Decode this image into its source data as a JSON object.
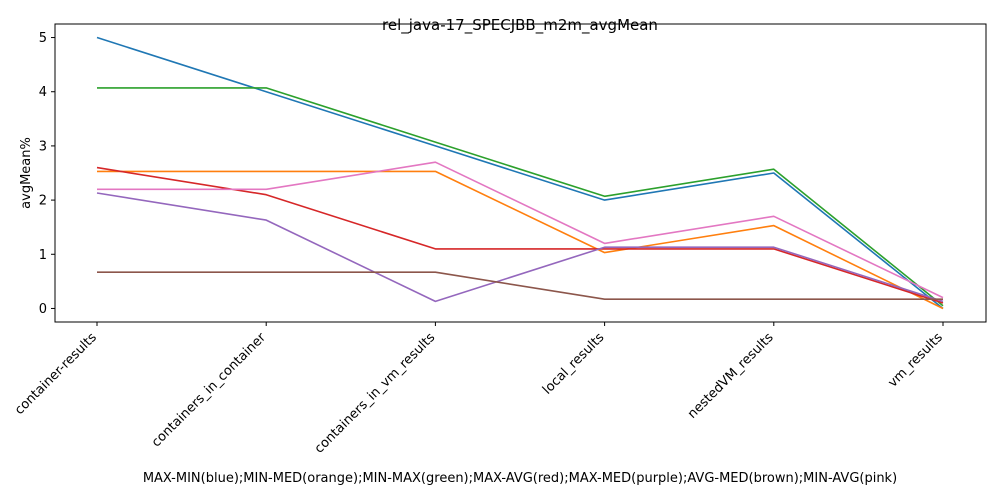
{
  "chart_data": {
    "type": "line",
    "title": "rel_java-17_SPECJBB_m2m_avgMean",
    "xlabel": "MAX-MIN(blue);MIN-MED(orange);MIN-MAX(green);MAX-AVG(red);MAX-MED(purple);AVG-MED(brown);MIN-AVG(pink)",
    "ylabel": "avgMean%",
    "categories": [
      "container-results",
      "containers_in_container",
      "containers_in_vm_results",
      "local_results",
      "nestedVM_results",
      "vm_results"
    ],
    "yticks": [
      0,
      1,
      2,
      3,
      4,
      5
    ],
    "ylim": [
      -0.25,
      5.25
    ],
    "grid": false,
    "series": [
      {
        "color": "#1f77b4",
        "values": [
          5.0,
          4.0,
          3.0,
          2.0,
          2.5,
          0.0
        ]
      },
      {
        "color": "#ff7f0e",
        "values": [
          2.53,
          2.53,
          2.53,
          1.03,
          1.53,
          0.0
        ]
      },
      {
        "color": "#2ca02c",
        "values": [
          4.07,
          4.07,
          3.07,
          2.07,
          2.57,
          0.05
        ]
      },
      {
        "color": "#d62728",
        "values": [
          2.6,
          2.1,
          1.1,
          1.1,
          1.1,
          0.1
        ]
      },
      {
        "color": "#9467bd",
        "values": [
          2.13,
          1.63,
          0.13,
          1.13,
          1.13,
          0.13
        ]
      },
      {
        "color": "#8c564b",
        "values": [
          0.67,
          0.67,
          0.67,
          0.17,
          0.17,
          0.17
        ]
      },
      {
        "color": "#e377c2",
        "values": [
          2.2,
          2.2,
          2.7,
          1.2,
          1.7,
          0.2
        ]
      }
    ]
  }
}
